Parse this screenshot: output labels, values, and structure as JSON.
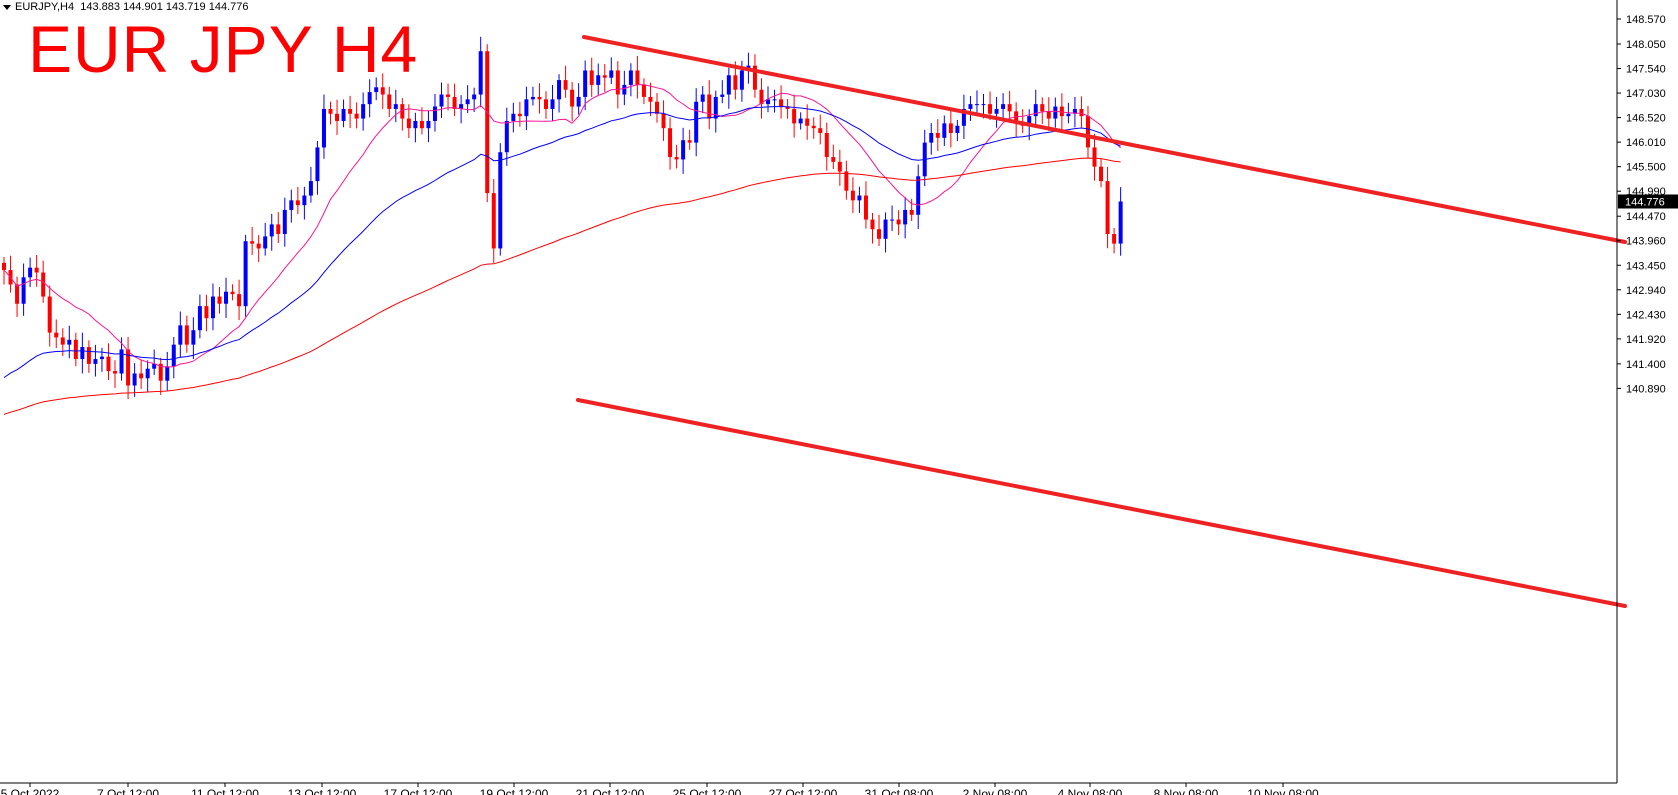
{
  "header": {
    "symbol_timeframe": "EURJPY,H4",
    "open": "143.883",
    "high": "144.901",
    "low": "143.719",
    "close": "144.776"
  },
  "colors": {
    "bull_candle": "#0000ff",
    "bear_candle": "#ff0000",
    "ma_fast": "#ff1493",
    "ma_mid": "#0000ff",
    "ma_slow": "#ff0000",
    "channel": "#ee2222",
    "title": "#ff0000"
  },
  "chart_data": {
    "type": "candlestick",
    "title": "EUR JPY H4",
    "grid": false,
    "ylim": [
      140.6,
      148.75
    ],
    "y_ticks": [
      "148.570",
      "148.050",
      "147.540",
      "147.030",
      "146.520",
      "146.010",
      "145.500",
      "144.990",
      "144.470",
      "143.960",
      "143.450",
      "142.940",
      "142.430",
      "141.920",
      "141.400",
      "140.890"
    ],
    "x_ticks": [
      "5 Oct 2022",
      "7 Oct 12:00",
      "11 Oct 12:00",
      "13 Oct 12:00",
      "17 Oct 12:00",
      "19 Oct 12:00",
      "21 Oct 12:00",
      "25 Oct 12:00",
      "27 Oct 12:00",
      "31 Oct 08:00",
      "2 Nov 08:00",
      "4 Nov 08:00",
      "8 Nov 08:00",
      "10 Nov 08:00"
    ],
    "current_price": "144.776",
    "closes": [
      143.35,
      143.05,
      142.65,
      143.2,
      143.4,
      143.3,
      142.8,
      142.05,
      141.95,
      141.8,
      141.9,
      141.5,
      141.75,
      141.4,
      141.5,
      141.55,
      141.25,
      141.2,
      141.7,
      140.95,
      141.2,
      141.1,
      141.3,
      141.4,
      141.05,
      141.35,
      141.8,
      142.2,
      141.8,
      142.1,
      142.6,
      142.35,
      142.8,
      142.65,
      142.9,
      142.85,
      142.6,
      143.95,
      143.9,
      143.8,
      144.05,
      144.3,
      144.1,
      144.6,
      144.8,
      144.7,
      144.9,
      145.2,
      145.9,
      146.7,
      146.6,
      146.45,
      146.7,
      146.6,
      146.5,
      146.8,
      147.05,
      147.15,
      147.0,
      146.7,
      146.8,
      146.5,
      146.3,
      146.45,
      146.3,
      146.45,
      146.75,
      147.0,
      146.95,
      146.7,
      146.8,
      146.9,
      147.0,
      147.9,
      144.95,
      143.8,
      145.8,
      146.45,
      146.6,
      146.55,
      146.9,
      146.95,
      146.9,
      146.7,
      146.9,
      147.3,
      147.1,
      146.75,
      146.95,
      147.5,
      147.2,
      147.4,
      147.35,
      147.5,
      147.0,
      147.2,
      147.5,
      147.2,
      146.95,
      146.85,
      146.6,
      146.3,
      145.7,
      145.65,
      146.05,
      146.0,
      146.85,
      147.0,
      146.5,
      146.95,
      147.0,
      147.4,
      147.1,
      147.5,
      147.6,
      147.1,
      146.8,
      146.9,
      146.9,
      146.75,
      146.7,
      146.4,
      146.5,
      146.35,
      146.3,
      146.2,
      145.7,
      145.6,
      145.4,
      145.0,
      144.8,
      144.9,
      144.4,
      144.2,
      144.0,
      144.4,
      144.4,
      144.3,
      144.6,
      144.5,
      145.3,
      146.0,
      146.2,
      146.1,
      146.4,
      146.2,
      146.35,
      146.7,
      146.8,
      146.8,
      146.8,
      146.6,
      146.7,
      146.8,
      146.65,
      146.4,
      146.35,
      146.55,
      146.8,
      146.65,
      146.5,
      146.75,
      146.55,
      146.6,
      146.7,
      146.55,
      145.9,
      145.5,
      145.2,
      144.1,
      143.9,
      144.776
    ]
  }
}
